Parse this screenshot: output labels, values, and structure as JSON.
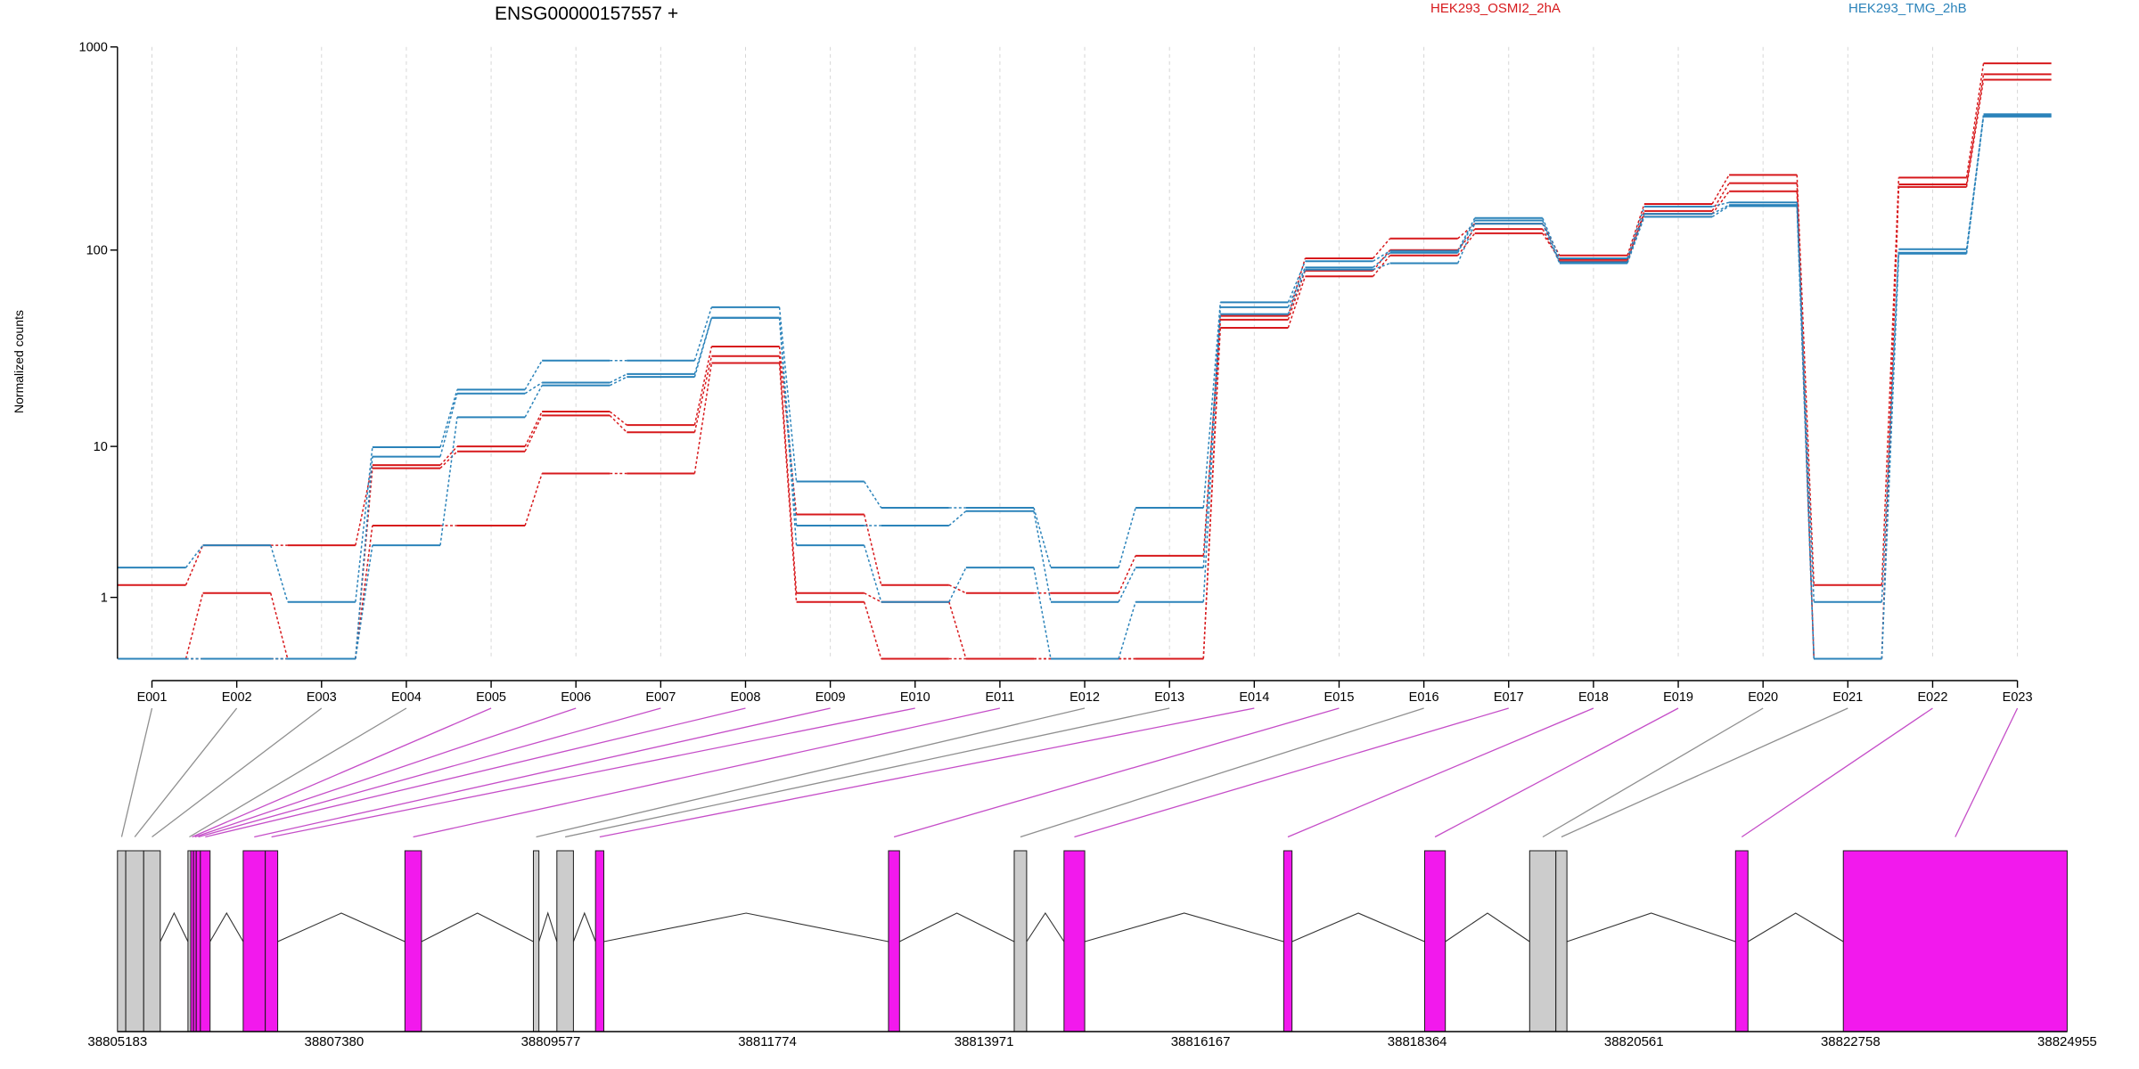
{
  "chart_data": {
    "type": "line",
    "title": "ENSG00000157557 +",
    "ylabel": "Normalized counts",
    "y_scale": "log",
    "ylim": [
      0,
      1000
    ],
    "y_ticks": [
      1,
      10,
      100,
      1000
    ],
    "grid": true,
    "legend": "top",
    "categories": [
      "E001",
      "E002",
      "E003",
      "E004",
      "E005",
      "E006",
      "E007",
      "E008",
      "E009",
      "E010",
      "E011",
      "E012",
      "E013",
      "E014",
      "E015",
      "E016",
      "E017",
      "E018",
      "E019",
      "E020",
      "E021",
      "E022",
      "E023"
    ],
    "groups": [
      {
        "name": "HEK293_OSMI2_2hA",
        "color": "#d7191c",
        "samples": [
          [
            1.3,
            2.6,
            2.6,
            7.9,
            10,
            15.3,
            13,
            33,
            4.1,
            1.3,
            1.1,
            1.1,
            2.2,
            47,
            91,
            114,
            135,
            94,
            169,
            235,
            1.3,
            228,
            831
          ],
          [
            0,
            1.1,
            0,
            7.6,
            9.4,
            14.6,
            11.9,
            29.5,
            1.1,
            0.9,
            0,
            0,
            0,
            45,
            79,
            100,
            127,
            88,
            156,
            214,
            0,
            211,
            734
          ],
          [
            0,
            0,
            0,
            3.5,
            3.5,
            7.1,
            7.1,
            27.2,
            0.9,
            0,
            0,
            0,
            0,
            41,
            74,
            94,
            121,
            90,
            151,
            195,
            0,
            205,
            690
          ]
        ]
      },
      {
        "name": "HEK293_TMG_2hB",
        "color": "#2b83ba",
        "samples": [
          [
            1.8,
            2.6,
            0.9,
            9.9,
            19.9,
            28,
            28,
            52,
            6.4,
            4.5,
            4.5,
            1.8,
            4.5,
            55,
            88,
            99,
            144,
            91,
            164,
            172,
            0.9,
            101,
            467
          ],
          [
            0,
            0,
            0,
            8.8,
            19,
            21.6,
            23.9,
            46,
            3.5,
            3.5,
            4.3,
            0.9,
            1.8,
            52,
            82,
            97,
            140,
            87,
            151,
            167,
            0,
            97,
            460
          ],
          [
            0,
            0,
            0,
            2.6,
            14.3,
            20.9,
            23.1,
            46,
            2.6,
            0.9,
            1.8,
            0,
            0.9,
            48,
            80,
            86,
            135,
            86,
            146,
            165,
            0,
            96,
            455
          ]
        ]
      }
    ],
    "gene_model": {
      "xlim": [
        38805183,
        38824955
      ],
      "ticks": [
        38805183,
        38807380,
        38809577,
        38811774,
        38813971,
        38816167,
        38818364,
        38820561,
        38822758,
        38824955
      ],
      "exons": [
        {
          "start": 38805183,
          "end": 38805267,
          "significant": false
        },
        {
          "start": 38805267,
          "end": 38805449,
          "significant": false
        },
        {
          "start": 38805449,
          "end": 38805617,
          "significant": false
        },
        {
          "start": 38805898,
          "end": 38805926,
          "significant": false
        },
        {
          "start": 38805926,
          "end": 38805954,
          "significant": true
        },
        {
          "start": 38805954,
          "end": 38805982,
          "significant": true
        },
        {
          "start": 38805982,
          "end": 38806024,
          "significant": true
        },
        {
          "start": 38806024,
          "end": 38806122,
          "significant": true
        },
        {
          "start": 38806458,
          "end": 38806682,
          "significant": true
        },
        {
          "start": 38806682,
          "end": 38806808,
          "significant": true
        },
        {
          "start": 38808098,
          "end": 38808266,
          "significant": true
        },
        {
          "start": 38809401,
          "end": 38809457,
          "significant": false
        },
        {
          "start": 38809639,
          "end": 38809807,
          "significant": false
        },
        {
          "start": 38810031,
          "end": 38810115,
          "significant": true
        },
        {
          "start": 38813002,
          "end": 38813114,
          "significant": true
        },
        {
          "start": 38814277,
          "end": 38814403,
          "significant": false
        },
        {
          "start": 38814782,
          "end": 38814992,
          "significant": true
        },
        {
          "start": 38817010,
          "end": 38817094,
          "significant": true
        },
        {
          "start": 38818439,
          "end": 38818649,
          "significant": true
        },
        {
          "start": 38819504,
          "end": 38819770,
          "significant": false
        },
        {
          "start": 38819770,
          "end": 38819882,
          "significant": false
        },
        {
          "start": 38821592,
          "end": 38821718,
          "significant": true
        },
        {
          "start": 38822685,
          "end": 38824955,
          "significant": true
        }
      ]
    }
  },
  "colors": {
    "exon_significant": "#f219ed",
    "exon_other": "#cccccc",
    "link_significant": "#c54ec8",
    "link_other": "#8f8f8f"
  }
}
